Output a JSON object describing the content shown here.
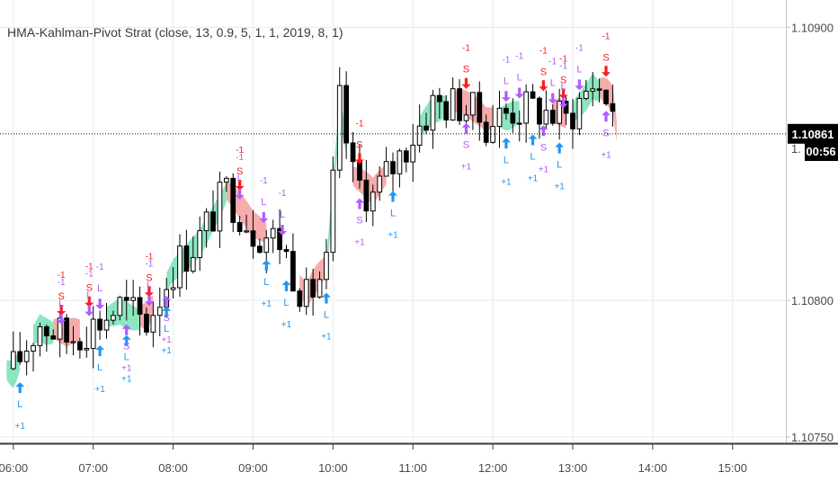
{
  "indicator_title": "HMA-Kahlman-Pivot Strat (close, 13, 0.9, 5, 1, 1, 2019, 8, 1)",
  "price_tag": {
    "value": "1.10861",
    "countdown": "00:56",
    "partial_tick": "1."
  },
  "colors": {
    "up_fill": "#ffffff",
    "down_fill": "#000000",
    "wick": "#000000",
    "bull_band": "#7fe3b8",
    "bear_band": "#f4a3a3",
    "entry_long": "#2196f3",
    "exit_long": "#b15cff",
    "short_signal": "#ff1a1a",
    "grid": "#e6eaf1",
    "axis_text": "#4a4a4a",
    "price_tag_bg": "#000000"
  },
  "marker_text": {
    "long": "L",
    "short": "S",
    "plus": "+1",
    "minus": "-1"
  },
  "chart_data": {
    "type": "candlestick",
    "title": "HMA-Kahlman-Pivot Strat (close, 13, 0.9, 5, 1, 1, 2019, 8, 1)",
    "x_ticks": [
      "06:00",
      "07:00",
      "08:00",
      "09:00",
      "10:00",
      "11:00",
      "12:00",
      "13:00",
      "14:00",
      "15:00"
    ],
    "y_ticks": [
      "1.10900",
      "1.10800",
      "1.10750"
    ],
    "y_tick_values": [
      1.109,
      1.108,
      1.1075
    ],
    "ylim": [
      1.10748,
      1.1091
    ],
    "xlim": [
      "05:50",
      "15:40"
    ],
    "last_price": 1.10861,
    "close_path": [
      [
        "06:00",
        1.10775
      ],
      [
        "06:20",
        1.10792
      ],
      [
        "06:40",
        1.10786
      ],
      [
        "07:00",
        1.10791
      ],
      [
        "07:20",
        1.10798
      ],
      [
        "07:40",
        1.10792
      ],
      [
        "08:00",
        1.10812
      ],
      [
        "08:20",
        1.10823
      ],
      [
        "08:40",
        1.1084
      ],
      [
        "09:00",
        1.10826
      ],
      [
        "09:20",
        1.10822
      ],
      [
        "09:40",
        1.108
      ],
      [
        "09:55",
        1.10812
      ],
      [
        "10:05",
        1.10872
      ],
      [
        "10:15",
        1.10845
      ],
      [
        "10:30",
        1.10838
      ],
      [
        "10:50",
        1.10853
      ],
      [
        "11:15",
        1.10872
      ],
      [
        "11:35",
        1.10872
      ],
      [
        "11:55",
        1.10865
      ],
      [
        "12:15",
        1.1087
      ],
      [
        "12:35",
        1.1087
      ],
      [
        "12:55",
        1.10866
      ],
      [
        "13:15",
        1.1088
      ],
      [
        "13:30",
        1.10872
      ],
      [
        "13:33",
        1.10861
      ]
    ],
    "bands": [
      {
        "trend": "bull",
        "from": "05:55",
        "to": "06:05"
      },
      {
        "trend": "bull",
        "from": "06:15",
        "to": "06:30"
      },
      {
        "trend": "bear",
        "from": "06:30",
        "to": "06:50"
      },
      {
        "trend": "bull",
        "from": "07:10",
        "to": "07:35"
      },
      {
        "trend": "bear",
        "from": "07:35",
        "to": "07:45"
      },
      {
        "trend": "bull",
        "from": "07:55",
        "to": "08:40"
      },
      {
        "trend": "bear",
        "from": "08:40",
        "to": "09:10"
      },
      {
        "trend": "bear",
        "from": "09:35",
        "to": "09:55"
      },
      {
        "trend": "bull",
        "from": "09:55",
        "to": "10:10"
      },
      {
        "trend": "bear",
        "from": "10:15",
        "to": "10:40"
      },
      {
        "trend": "bull",
        "from": "11:05",
        "to": "11:25"
      },
      {
        "trend": "bear",
        "from": "11:30",
        "to": "12:00"
      },
      {
        "trend": "bull",
        "from": "12:05",
        "to": "12:20"
      },
      {
        "trend": "bear",
        "from": "12:45",
        "to": "12:55"
      },
      {
        "trend": "bull",
        "from": "13:00",
        "to": "13:20"
      },
      {
        "trend": "bear",
        "from": "13:20",
        "to": "13:33"
      }
    ],
    "signals": [
      {
        "kind": "long_entry",
        "time": "06:05"
      },
      {
        "kind": "short_entry",
        "time": "06:36"
      },
      {
        "kind": "long_exit",
        "time": "06:36"
      },
      {
        "kind": "short_entry",
        "time": "06:57"
      },
      {
        "kind": "long_exit",
        "time": "06:57"
      },
      {
        "kind": "long_entry",
        "time": "07:05"
      },
      {
        "kind": "long_exit",
        "time": "07:05"
      },
      {
        "kind": "long_entry",
        "time": "07:25"
      },
      {
        "kind": "short_exit",
        "time": "07:25"
      },
      {
        "kind": "short_entry",
        "time": "07:42"
      },
      {
        "kind": "long_exit",
        "time": "07:42"
      },
      {
        "kind": "long_entry",
        "time": "07:55"
      },
      {
        "kind": "short_exit",
        "time": "07:55"
      },
      {
        "kind": "short_entry",
        "time": "08:50"
      },
      {
        "kind": "long_exit",
        "time": "08:50"
      },
      {
        "kind": "long_exit",
        "time": "09:08"
      },
      {
        "kind": "long_entry",
        "time": "09:10"
      },
      {
        "kind": "long_exit",
        "time": "09:22"
      },
      {
        "kind": "long_entry",
        "time": "09:25"
      },
      {
        "kind": "long_entry",
        "time": "09:55"
      },
      {
        "kind": "short_entry",
        "time": "10:20"
      },
      {
        "kind": "short_exit",
        "time": "10:20"
      },
      {
        "kind": "long_entry",
        "time": "10:45"
      },
      {
        "kind": "short_entry",
        "time": "11:40"
      },
      {
        "kind": "short_exit",
        "time": "11:40"
      },
      {
        "kind": "long_exit",
        "time": "12:10"
      },
      {
        "kind": "long_entry",
        "time": "12:10"
      },
      {
        "kind": "long_exit",
        "time": "12:20"
      },
      {
        "kind": "long_entry",
        "time": "12:30"
      },
      {
        "kind": "short_entry",
        "time": "12:38"
      },
      {
        "kind": "short_exit",
        "time": "12:38"
      },
      {
        "kind": "long_exit",
        "time": "12:45"
      },
      {
        "kind": "long_entry",
        "time": "12:50"
      },
      {
        "kind": "short_entry",
        "time": "12:53"
      },
      {
        "kind": "long_exit",
        "time": "12:53"
      },
      {
        "kind": "long_exit",
        "time": "13:05"
      },
      {
        "kind": "short_entry",
        "time": "13:25"
      },
      {
        "kind": "short_exit",
        "time": "13:25"
      }
    ]
  }
}
